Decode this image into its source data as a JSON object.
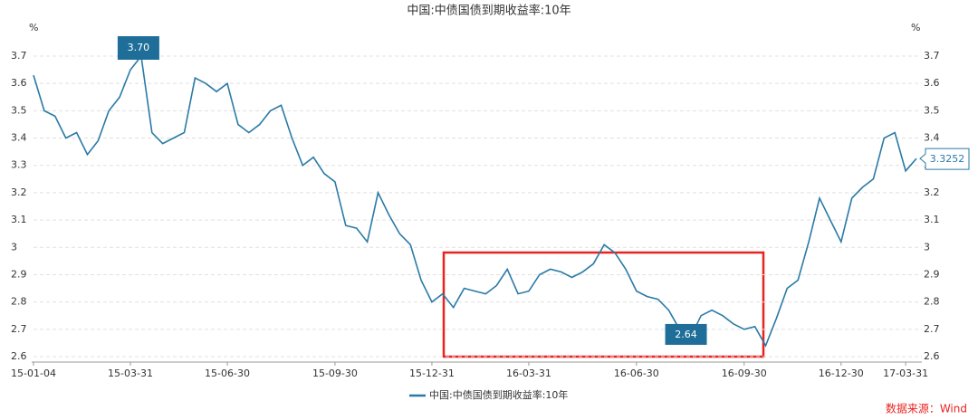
{
  "chart_data": {
    "type": "line",
    "title": "中国:中债国债到期收益率:10年",
    "y_unit": "%",
    "source": "数据来源：Wind",
    "categories": [
      "15-01-04",
      null,
      null,
      null,
      null,
      null,
      null,
      null,
      null,
      "15-03-31",
      null,
      null,
      null,
      null,
      null,
      null,
      null,
      null,
      "15-06-30",
      null,
      null,
      null,
      null,
      null,
      null,
      null,
      null,
      null,
      "15-09-30",
      null,
      null,
      null,
      null,
      null,
      null,
      null,
      null,
      "15-12-31",
      null,
      null,
      null,
      null,
      null,
      null,
      null,
      null,
      "16-03-31",
      null,
      null,
      null,
      null,
      null,
      null,
      null,
      null,
      null,
      "16-06-30",
      null,
      null,
      null,
      null,
      null,
      null,
      null,
      null,
      null,
      "16-09-30",
      null,
      null,
      null,
      null,
      null,
      null,
      null,
      null,
      "16-12-30",
      null,
      null,
      null,
      null,
      null,
      "17-03-31",
      null
    ],
    "series": [
      {
        "name": "中国:中债国债到期收益率:10年",
        "color": "#2a7aa6",
        "values": [
          3.63,
          3.5,
          3.48,
          3.4,
          3.42,
          3.34,
          3.39,
          3.5,
          3.55,
          3.65,
          3.7,
          3.42,
          3.38,
          3.4,
          3.42,
          3.62,
          3.6,
          3.57,
          3.6,
          3.45,
          3.42,
          3.45,
          3.5,
          3.52,
          3.4,
          3.3,
          3.33,
          3.27,
          3.24,
          3.08,
          3.07,
          3.02,
          3.2,
          3.12,
          3.05,
          3.01,
          2.88,
          2.8,
          2.83,
          2.78,
          2.85,
          2.84,
          2.83,
          2.86,
          2.92,
          2.83,
          2.84,
          2.9,
          2.92,
          2.91,
          2.89,
          2.91,
          2.94,
          3.01,
          2.98,
          2.92,
          2.84,
          2.82,
          2.81,
          2.77,
          2.7,
          2.67,
          2.75,
          2.77,
          2.75,
          2.72,
          2.7,
          2.71,
          2.64,
          2.74,
          2.85,
          2.88,
          3.02,
          3.18,
          3.1,
          3.02,
          3.18,
          3.22,
          3.25,
          3.4,
          3.42,
          3.28,
          3.3252
        ]
      }
    ],
    "max_label": "3.70",
    "min_label": "2.64",
    "last_label": "3.3252",
    "ylim": [
      2.6,
      3.7
    ],
    "yticks": [
      2.6,
      2.7,
      2.8,
      2.9,
      3,
      3.1,
      3.2,
      3.3,
      3.4,
      3.5,
      3.6,
      3.7
    ],
    "grid": true
  }
}
